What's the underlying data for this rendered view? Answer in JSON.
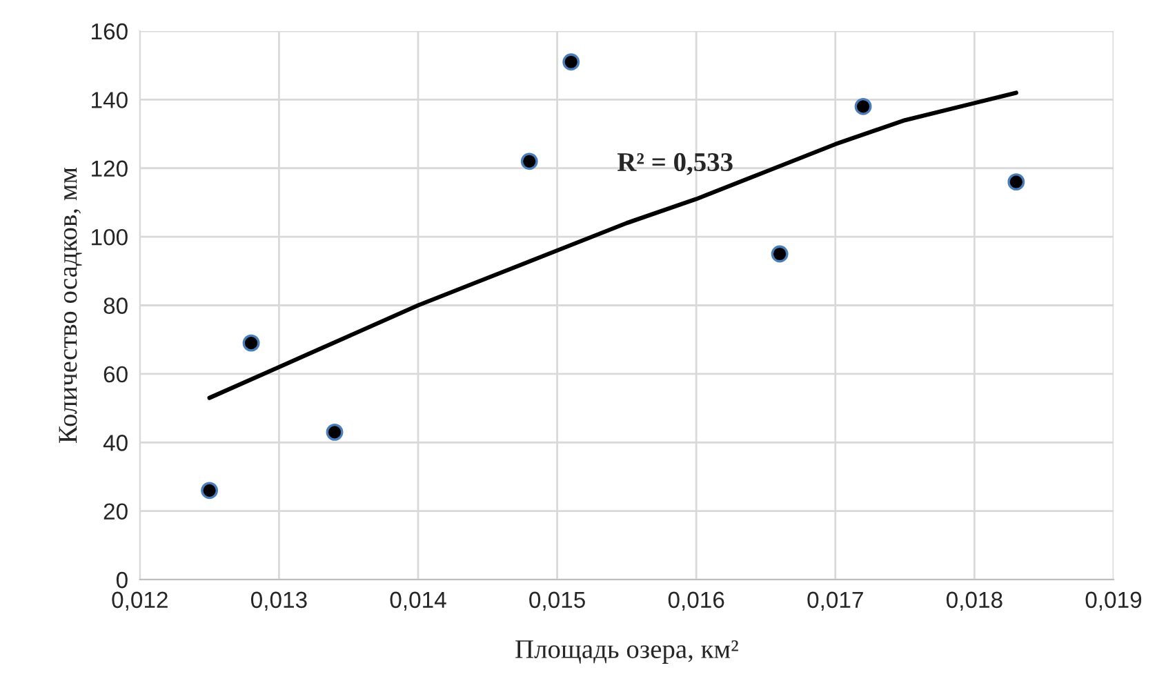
{
  "chart_data": {
    "type": "scatter",
    "xlabel": "Площадь озера, км²",
    "ylabel": "Количество осадков, мм",
    "series": [
      {
        "color": "#000000",
        "marker": "circle",
        "x": [
          0.0125,
          0.0128,
          0.0134,
          0.0148,
          0.0151,
          0.0166,
          0.0172,
          0.0183
        ],
        "values": [
          26,
          69,
          43,
          122,
          151,
          95,
          138,
          116
        ]
      },
      {
        "type": "line",
        "color": "#000000",
        "marker": "none",
        "x": [
          0.0125,
          0.013,
          0.0135,
          0.014,
          0.0145,
          0.015,
          0.0155,
          0.016,
          0.0165,
          0.017,
          0.0175,
          0.018,
          0.0183
        ],
        "values": [
          53,
          62,
          71,
          80,
          88,
          96,
          104,
          111,
          119,
          127,
          134,
          139,
          142
        ]
      }
    ],
    "annotations": [
      "R² = 0,533"
    ],
    "xlim": [
      0.012,
      0.019
    ],
    "xticks": [
      {
        "value": 0.012,
        "label": "0,012"
      },
      {
        "value": 0.013,
        "label": "0,013"
      },
      {
        "value": 0.014,
        "label": "0,014"
      },
      {
        "value": 0.015,
        "label": "0,015"
      },
      {
        "value": 0.016,
        "label": "0,016"
      },
      {
        "value": 0.017,
        "label": "0,017"
      },
      {
        "value": 0.018,
        "label": "0,018"
      },
      {
        "value": 0.019,
        "label": "0,019"
      }
    ],
    "ylim": [
      0,
      160
    ],
    "yticks": [
      0,
      20,
      40,
      60,
      80,
      100,
      120,
      140,
      160
    ],
    "grid": true,
    "legend": false
  }
}
